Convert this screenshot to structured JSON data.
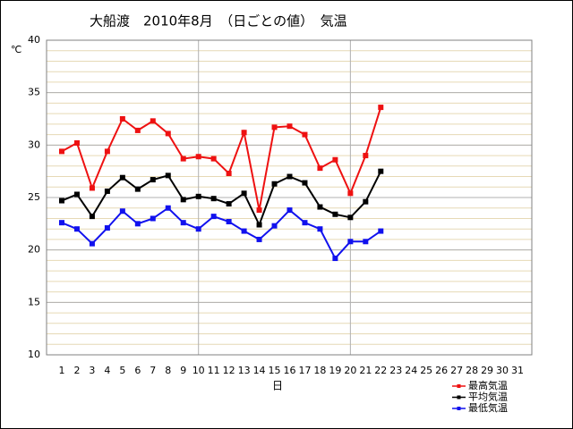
{
  "chart_data": {
    "type": "line",
    "title": "大船渡　2010年8月　（日ごとの値）　気温",
    "y_unit": "℃",
    "x_label": "日",
    "categories": [
      "1",
      "2",
      "3",
      "4",
      "5",
      "6",
      "7",
      "8",
      "9",
      "10",
      "11",
      "12",
      "13",
      "14",
      "15",
      "16",
      "17",
      "18",
      "19",
      "20",
      "21",
      "22",
      "23",
      "24",
      "25",
      "26",
      "27",
      "28",
      "29",
      "30",
      "31"
    ],
    "series": [
      {
        "name": "最高気温",
        "color": "#ee1111",
        "values": [
          29.4,
          30.2,
          25.9,
          29.4,
          32.5,
          31.4,
          32.3,
          31.1,
          28.7,
          28.9,
          28.7,
          27.3,
          31.2,
          23.8,
          31.7,
          31.8,
          31.0,
          27.8,
          28.6,
          25.4,
          29.0,
          33.6,
          null,
          null,
          null,
          null,
          null,
          null,
          null,
          null,
          null
        ]
      },
      {
        "name": "平均気温",
        "color": "#000000",
        "values": [
          24.7,
          25.3,
          23.2,
          25.6,
          26.9,
          25.8,
          26.7,
          27.1,
          24.8,
          25.1,
          24.9,
          24.4,
          25.4,
          22.4,
          26.3,
          27.0,
          26.4,
          24.1,
          23.4,
          23.1,
          24.6,
          27.5,
          null,
          null,
          null,
          null,
          null,
          null,
          null,
          null,
          null
        ]
      },
      {
        "name": "最低気温",
        "color": "#1111ee",
        "values": [
          22.6,
          22.0,
          20.6,
          22.1,
          23.7,
          22.5,
          23.0,
          24.0,
          22.6,
          22.0,
          23.2,
          22.7,
          21.8,
          21.0,
          22.3,
          23.8,
          22.6,
          22.0,
          19.2,
          20.8,
          20.8,
          21.8,
          null,
          null,
          null,
          null,
          null,
          null,
          null,
          null,
          null
        ]
      }
    ],
    "ylim": [
      10,
      40
    ],
    "yticks": [
      10,
      15,
      20,
      25,
      30,
      35,
      40
    ],
    "grid": true,
    "minor_grid": {
      "step": 1,
      "color": "#e6d9b5"
    },
    "xgrid": [
      "10",
      "20"
    ],
    "legend": "bottom-right"
  }
}
